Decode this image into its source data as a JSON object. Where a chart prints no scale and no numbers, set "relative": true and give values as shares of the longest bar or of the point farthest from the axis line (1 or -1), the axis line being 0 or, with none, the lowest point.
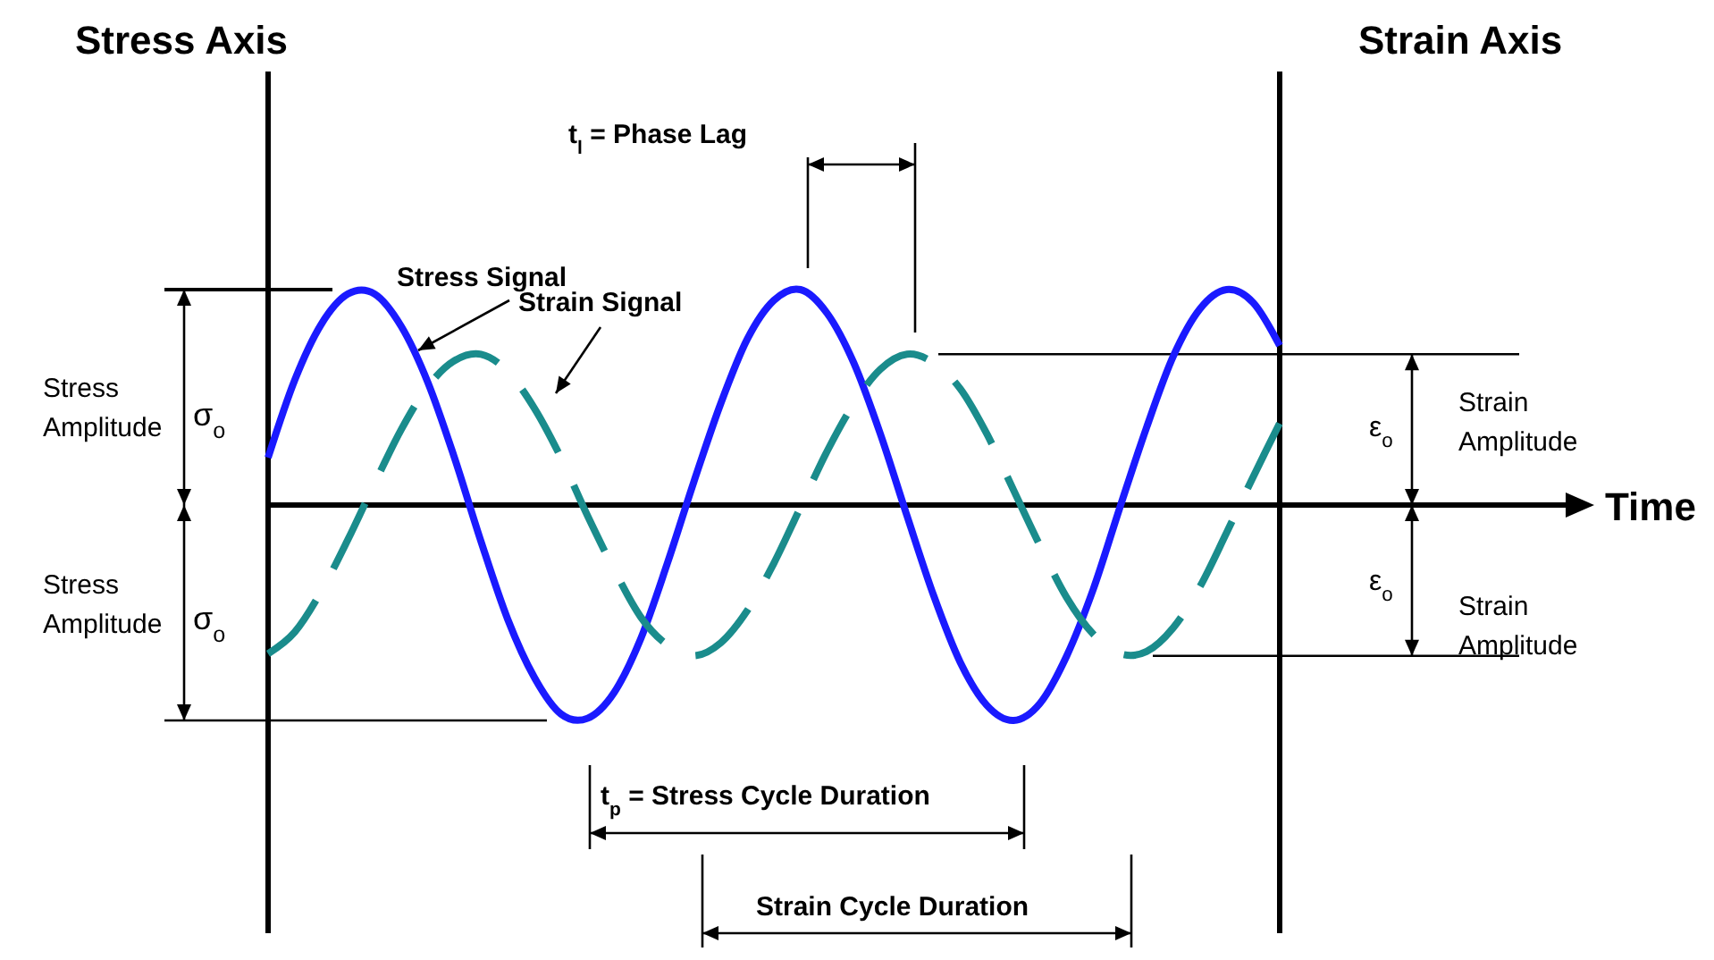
{
  "chart_data": {
    "type": "line",
    "relative": true,
    "categories": [
      null,
      null,
      null,
      null,
      null,
      null,
      null,
      null,
      null,
      null,
      null,
      null,
      null,
      null,
      null,
      null,
      null,
      null,
      null,
      null,
      null,
      null,
      null,
      null,
      null,
      null,
      null,
      null,
      null,
      null,
      null,
      null,
      null,
      null,
      null,
      null,
      null,
      null,
      null
    ],
    "series": [
      {
        "name": "Stress Signal",
        "color": "#1a1aff",
        "line_style": "solid",
        "values": [
          0.22,
          0.58,
          0.84,
          0.98,
          0.98,
          0.83,
          0.57,
          0.22,
          -0.17,
          -0.53,
          -0.8,
          -0.97,
          -0.99,
          -0.87,
          -0.62,
          -0.27,
          0.11,
          0.47,
          0.77,
          0.95,
          1.0,
          0.89,
          0.66,
          0.33,
          -0.05,
          -0.42,
          -0.73,
          -0.93,
          -1.0,
          -0.92,
          -0.7,
          -0.39,
          -0.01,
          0.36,
          0.69,
          0.91,
          1.0,
          0.94,
          0.74
        ]
      },
      {
        "name": "Strain Signal",
        "color": "#1a8c8c",
        "line_style": "dashed",
        "values": [
          -0.69,
          -0.59,
          -0.4,
          -0.16,
          0.1,
          0.35,
          0.55,
          0.67,
          0.7,
          0.62,
          0.45,
          0.22,
          -0.05,
          -0.3,
          -0.52,
          -0.65,
          -0.7,
          -0.64,
          -0.49,
          -0.27,
          -0.01,
          0.25,
          0.47,
          0.63,
          0.7,
          0.66,
          0.54,
          0.33,
          0.07,
          -0.19,
          -0.43,
          -0.6,
          -0.69,
          -0.68,
          -0.57,
          -0.38,
          -0.13,
          0.13,
          0.38
        ]
      }
    ],
    "annotations": [
      "Stress Axis",
      "Strain Axis",
      "Time",
      "t$_{l}$ = Phase Lag",
      "t$_{p}$ = Stress Cycle Duration",
      "Strain Cycle Duration",
      "Stress Amplitude",
      "σ$_{o}$",
      "Stress Amplitude",
      "σ$_{o}$",
      "ε$_{o}$",
      "Strain Amplitude",
      "ε$_{o}$",
      "Strain Amplitude"
    ]
  }
}
